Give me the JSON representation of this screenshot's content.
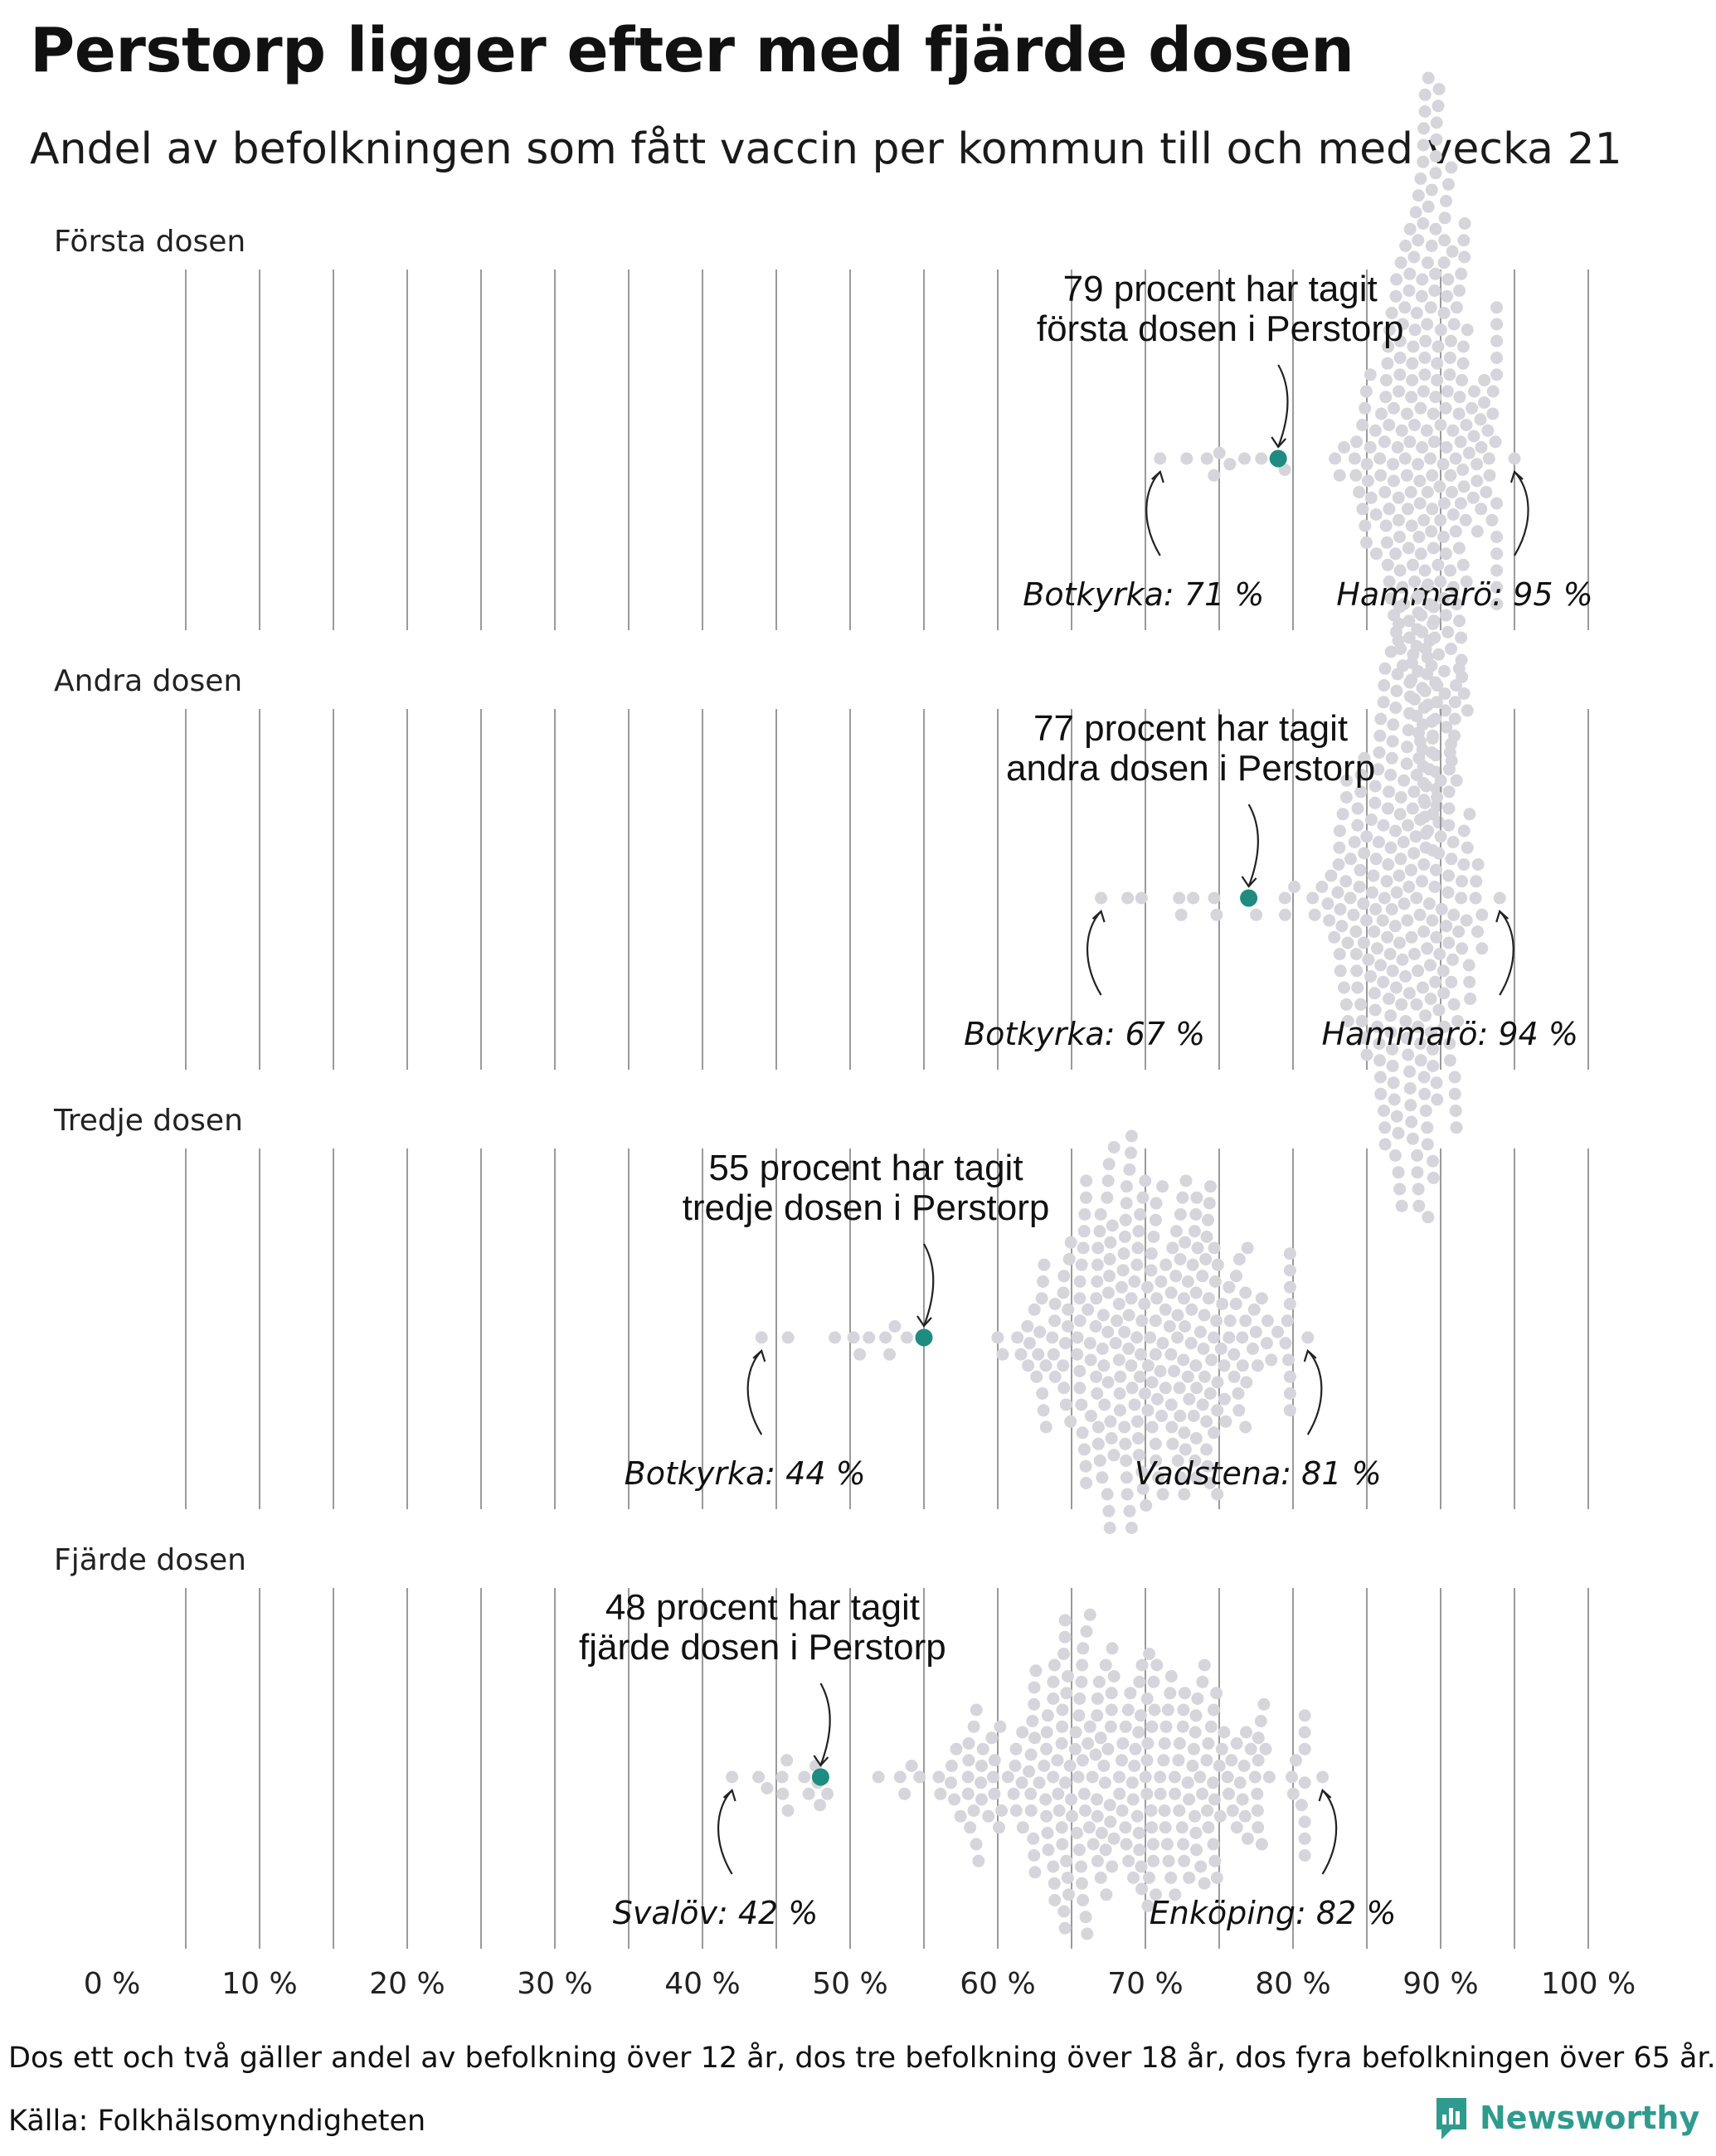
{
  "title": "Perstorp ligger efter med fjärde dosen",
  "subtitle": "Andel av befolkningen som fått vaccin per kommun till och med vecka 21",
  "note": "Dos ett och två gäller andel av befolkning över 12 år, dos tre befolkning över 18 år, dos fyra befolkningen över 65 år.",
  "source": "Källa: Folkhälsomyndigheten",
  "brand": "Newsworthy",
  "colors": {
    "highlight": "#1e8c80",
    "dot": "#d6d5db",
    "brand": "#2f9b8e"
  },
  "chart_data": {
    "type": "scatter",
    "subtype": "beeswarm",
    "xlim": [
      0,
      100
    ],
    "x_ticks": [
      0,
      10,
      20,
      30,
      40,
      50,
      60,
      70,
      80,
      90,
      100
    ],
    "x_tick_labels": [
      "0 %",
      "10 %",
      "20 %",
      "30 %",
      "40 %",
      "50 %",
      "60 %",
      "70 %",
      "80 %",
      "90 %",
      "100 %"
    ],
    "grid": true,
    "highlight": "Perstorp",
    "panels": [
      {
        "name": "Första dosen",
        "highlight_value": 79,
        "annotation": [
          "79 procent har tagit",
          "första dosen i Perstorp"
        ],
        "min": {
          "label": "Botkyrka: 71 %",
          "value": 71
        },
        "max": {
          "label": "Hammarö: 95 %",
          "value": 95
        },
        "distribution": {
          "center": 89.5,
          "spread": 2.4,
          "count": 280
        }
      },
      {
        "name": "Andra dosen",
        "highlight_value": 77,
        "annotation": [
          "77 procent har tagit",
          "andra dosen i Perstorp"
        ],
        "min": {
          "label": "Botkyrka: 67 %",
          "value": 67
        },
        "max": {
          "label": "Hammarö: 94 %",
          "value": 94
        },
        "distribution": {
          "center": 87.5,
          "spread": 2.6,
          "count": 280
        }
      },
      {
        "name": "Tredje dosen",
        "highlight_value": 55,
        "annotation": [
          "55 procent har tagit",
          "tredje dosen i Perstorp"
        ],
        "min": {
          "label": "Botkyrka: 44 %",
          "value": 44
        },
        "max": {
          "label": "Vadstena: 81 %",
          "value": 81
        },
        "distribution": {
          "center": 70,
          "spread": 4.5,
          "count": 280
        }
      },
      {
        "name": "Fjärde dosen",
        "highlight_value": 48,
        "annotation": [
          "48 procent har tagit",
          "fjärde dosen i Perstorp"
        ],
        "min": {
          "label": "Svalöv: 42 %",
          "value": 42
        },
        "max": {
          "label": "Enköping: 82 %",
          "value": 82
        },
        "distribution": {
          "center": 68,
          "spread": 6.5,
          "count": 280
        }
      }
    ]
  }
}
